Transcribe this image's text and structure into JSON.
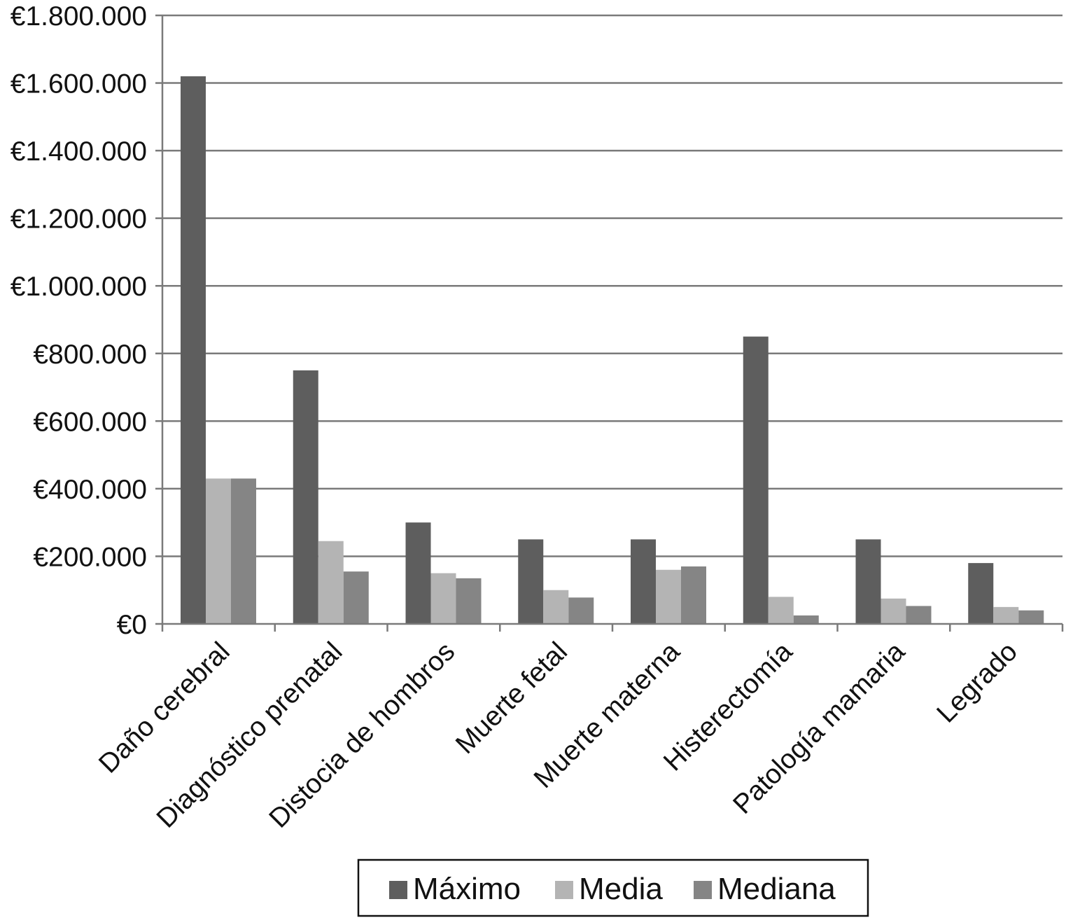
{
  "chart_data": {
    "type": "bar",
    "title": "",
    "xlabel": "",
    "ylabel": "",
    "ylim": [
      0,
      1800000
    ],
    "yticks": [
      0,
      200000,
      400000,
      600000,
      800000,
      1000000,
      1200000,
      1400000,
      1600000,
      1800000
    ],
    "ytick_labels": [
      "€0",
      "€200.000",
      "€400.000",
      "€600.000",
      "€800.000",
      "€1.000.000",
      "€1.200.000",
      "€1.400.000",
      "€1.600.000",
      "€1.800.000"
    ],
    "grid": true,
    "legend_position": "bottom",
    "categories": [
      "Daño cerebral",
      "Diagnóstico prenatal",
      "Distocia de hombros",
      "Muerte fetal",
      "Muerte materna",
      "Histerectomía",
      "Patología mamaria",
      "Legrado"
    ],
    "series": [
      {
        "name": "Máximo",
        "color": "#5e5e5e",
        "values": [
          1620000,
          750000,
          300000,
          250000,
          250000,
          850000,
          250000,
          180000
        ]
      },
      {
        "name": "Media",
        "color": "#b4b4b4",
        "values": [
          430000,
          245000,
          150000,
          100000,
          160000,
          80000,
          75000,
          50000
        ]
      },
      {
        "name": "Mediana",
        "color": "#858585",
        "values": [
          430000,
          155000,
          135000,
          78000,
          170000,
          25000,
          53000,
          40000
        ]
      }
    ]
  }
}
